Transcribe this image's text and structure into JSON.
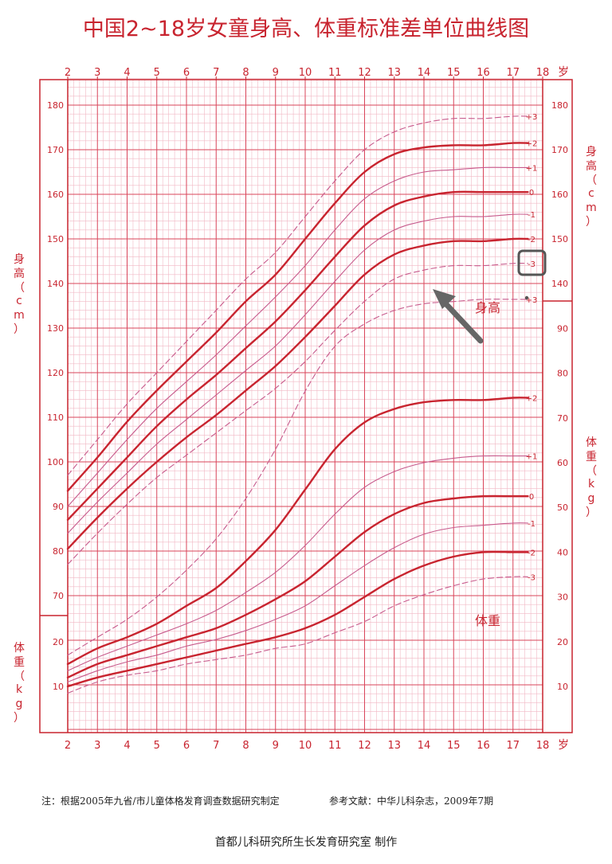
{
  "title": "中国2~18岁女童身高、体重标准差单位曲线图",
  "footnote": "注：根据2005年九省/市儿童体格发育调查数据研究制定",
  "reference": "参考文献：中华儿科杂志，2009年7期",
  "producer": "首都儿科研究所生长发育研究室  制作",
  "colors": {
    "accent": "#c8242f",
    "grid_major": "#d9455a",
    "grid_minor": "#f2b8c4",
    "arrow": "#666666"
  },
  "icons": {
    "arrow": "arrow-pointer-icon",
    "highlight": "highlight-box-icon"
  },
  "annotations": {
    "height_label": "身高",
    "weight_label": "体重"
  },
  "chart_data": [
    {
      "type": "line",
      "title": "",
      "xlabel": "岁",
      "ylabel": "身高（cm）",
      "ylim": [
        130,
        185
      ],
      "xlim": [
        2,
        18
      ],
      "x_ticks": [
        2,
        3,
        4,
        5,
        6,
        7,
        8,
        9,
        10,
        11,
        12,
        13,
        14,
        15,
        16,
        17,
        18
      ],
      "y_ticks_left": [
        140,
        150,
        160,
        170,
        180
      ],
      "y_ticks_right": [
        140,
        150,
        160,
        170,
        180
      ],
      "grid": true,
      "x": [
        2,
        3,
        4,
        5,
        6,
        7,
        8,
        9,
        10,
        11,
        12,
        13,
        14,
        15,
        16,
        17,
        17.5
      ],
      "series": [
        {
          "name": "+3",
          "style": "dashed",
          "values": [
            97,
            105,
            113,
            120,
            127,
            134,
            141,
            147,
            155,
            163,
            170,
            174,
            176,
            177,
            177,
            177.5,
            177.5
          ]
        },
        {
          "name": "+2",
          "style": "bold",
          "values": [
            93.5,
            101,
            109,
            116,
            122.5,
            129,
            136,
            142,
            150,
            158,
            165,
            169,
            170.5,
            171,
            171,
            171.5,
            171.5
          ]
        },
        {
          "name": "+1",
          "style": "thin",
          "values": [
            90,
            97.5,
            105,
            112,
            118,
            124,
            130.5,
            137,
            144,
            152,
            159,
            163,
            165,
            165.5,
            166,
            166,
            166
          ]
        },
        {
          "name": "0",
          "style": "bold",
          "values": [
            87,
            94,
            101,
            108,
            114,
            119.5,
            125.5,
            131.5,
            138.5,
            146,
            153,
            157.5,
            159.5,
            160.5,
            160.5,
            160.5,
            160.5
          ]
        },
        {
          "name": "-1",
          "style": "thin",
          "values": [
            84,
            91,
            97.5,
            104,
            109.5,
            115,
            120.5,
            126,
            133,
            140.5,
            147.5,
            152,
            154,
            155,
            155,
            155.5,
            155.5
          ]
        },
        {
          "name": "-2",
          "style": "bold",
          "values": [
            80.5,
            87.5,
            94,
            100,
            105.5,
            110.5,
            116,
            121.5,
            128,
            135,
            142,
            146.5,
            148.5,
            149.5,
            149.5,
            150,
            150
          ]
        },
        {
          "name": "-3",
          "style": "dashed",
          "values": [
            77,
            84,
            90.5,
            96.5,
            101.5,
            106.5,
            111.5,
            116.5,
            122.5,
            129.5,
            136,
            141,
            143,
            144,
            144,
            144.5,
            144.5
          ]
        }
      ]
    },
    {
      "type": "line",
      "title": "",
      "xlabel": "岁",
      "ylabel": "体重（kg）",
      "ylim": [
        5,
        95
      ],
      "xlim": [
        2,
        18
      ],
      "x_ticks": [
        2,
        3,
        4,
        5,
        6,
        7,
        8,
        9,
        10,
        11,
        12,
        13,
        14,
        15,
        16,
        17,
        18
      ],
      "y_ticks_left": [
        10,
        20
      ],
      "y_ticks_right": [
        10,
        20,
        30,
        40,
        50,
        60,
        70,
        80,
        90
      ],
      "grid": true,
      "x": [
        2,
        3,
        4,
        5,
        6,
        7,
        8,
        9,
        10,
        11,
        12,
        13,
        14,
        15,
        16,
        17,
        17.5
      ],
      "series": [
        {
          "name": "+3",
          "style": "dashed",
          "values": [
            17,
            21,
            25,
            30,
            36,
            43,
            52,
            63,
            76,
            86,
            91,
            94,
            95.5,
            96,
            96.5,
            96.5,
            96.5
          ]
        },
        {
          "name": "+2",
          "style": "bold",
          "values": [
            15,
            18.5,
            21,
            24,
            28,
            32,
            38,
            45,
            54,
            63,
            69,
            72,
            73.5,
            74,
            74,
            74.5,
            74.5
          ]
        },
        {
          "name": "+1",
          "style": "thin",
          "values": [
            13.5,
            16.5,
            19,
            21.5,
            24,
            27,
            31,
            35.5,
            41.5,
            48.5,
            54.5,
            58,
            60,
            61,
            61.5,
            61.5,
            61.5
          ]
        },
        {
          "name": "0",
          "style": "bold",
          "values": [
            12,
            15,
            17,
            19,
            21,
            23,
            26,
            29.5,
            33.5,
            39,
            44.5,
            48.5,
            51,
            52,
            52.5,
            52.5,
            52.5
          ]
        },
        {
          "name": "-1",
          "style": "thin",
          "values": [
            11,
            13.5,
            15.5,
            17,
            19,
            20.5,
            22.5,
            25,
            28,
            32.5,
            37,
            41,
            44,
            45.5,
            46,
            46.5,
            46.5
          ]
        },
        {
          "name": "-2",
          "style": "bold",
          "values": [
            10,
            12,
            13.5,
            15,
            16.5,
            18,
            19.5,
            21,
            23,
            26,
            30,
            34,
            37,
            39,
            40,
            40,
            40
          ]
        },
        {
          "name": "-3",
          "style": "dashed",
          "values": [
            8.5,
            11,
            12.5,
            13.5,
            15,
            16,
            17,
            18.5,
            19.5,
            22,
            24.5,
            28,
            30.5,
            32.5,
            34,
            34.5,
            34.5
          ]
        }
      ]
    }
  ]
}
